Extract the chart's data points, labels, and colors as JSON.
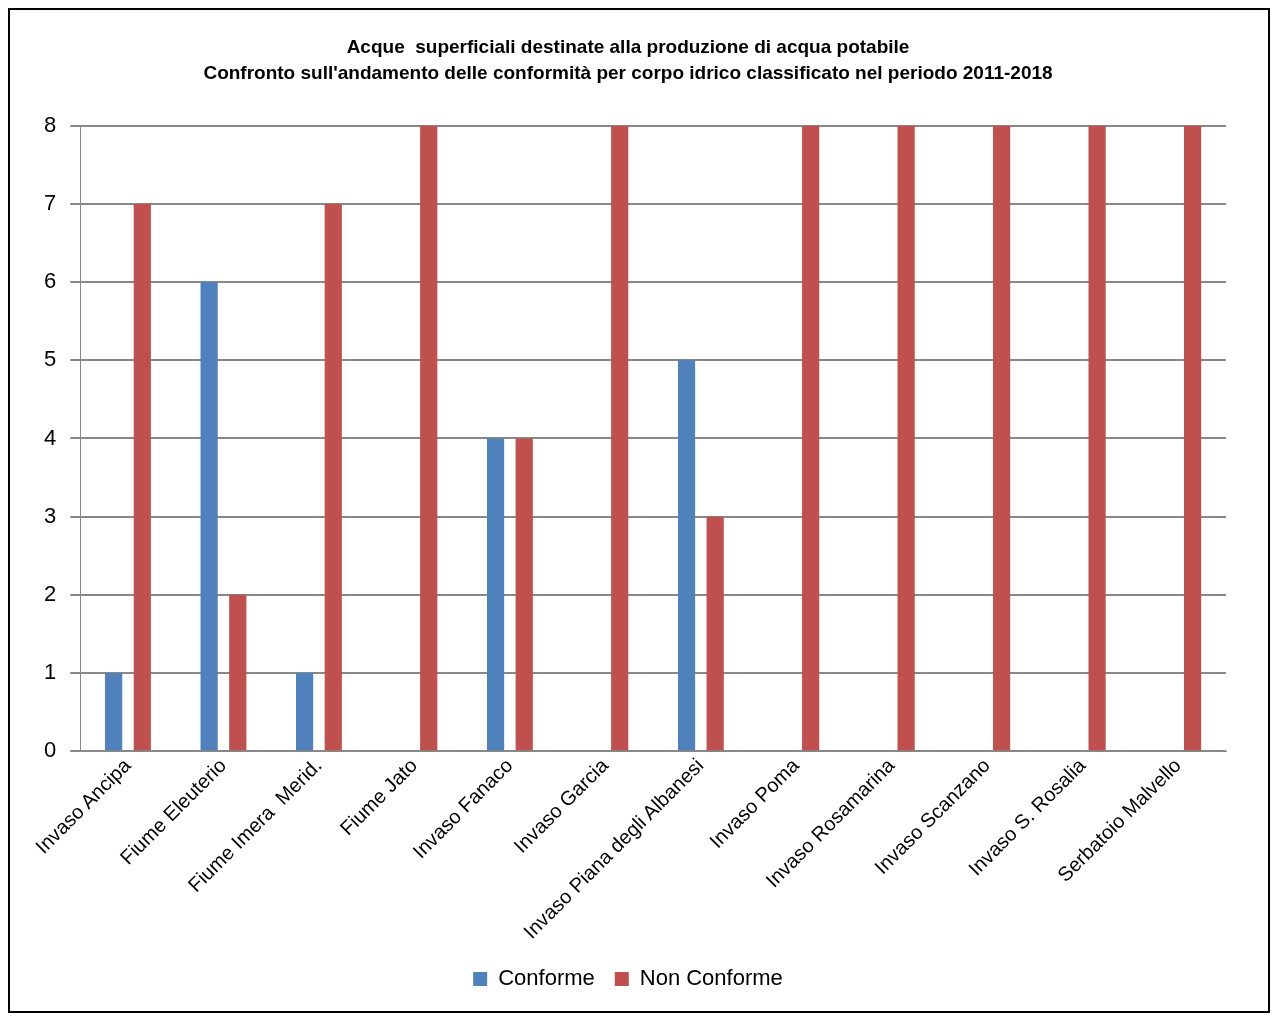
{
  "chart_data": {
    "type": "bar",
    "title": "Acque  superficiali destinate alla produzione di acqua potabile",
    "subtitle": "Confronto sull'andamento delle conformità per corpo idrico classificato nel periodo 2011-2018",
    "categories": [
      "Invaso Ancipa",
      "Fiume Eleuterio",
      "Fiume Imera  Merid.",
      "Fiume Jato",
      "Invaso Fanaco",
      "Invaso Garcia",
      "Invaso Piana degli Albanesi",
      "Invaso Poma",
      "Invaso Rosamarina",
      "Invaso Scanzano",
      "Invaso S. Rosalia",
      "Serbatoio Malvello"
    ],
    "series": [
      {
        "name": "Conforme",
        "color": "#4f81bd",
        "values": [
          1,
          6,
          1,
          0,
          4,
          0,
          5,
          0,
          0,
          0,
          0,
          0
        ]
      },
      {
        "name": "Non Conforme",
        "color": "#c0504d",
        "values": [
          7,
          2,
          7,
          8,
          4,
          8,
          3,
          8,
          8,
          8,
          8,
          8
        ]
      }
    ],
    "ylim": [
      0,
      8
    ],
    "yticks": [
      0,
      1,
      2,
      3,
      4,
      5,
      6,
      7,
      8
    ],
    "grid": "y",
    "legend": "bottom"
  }
}
